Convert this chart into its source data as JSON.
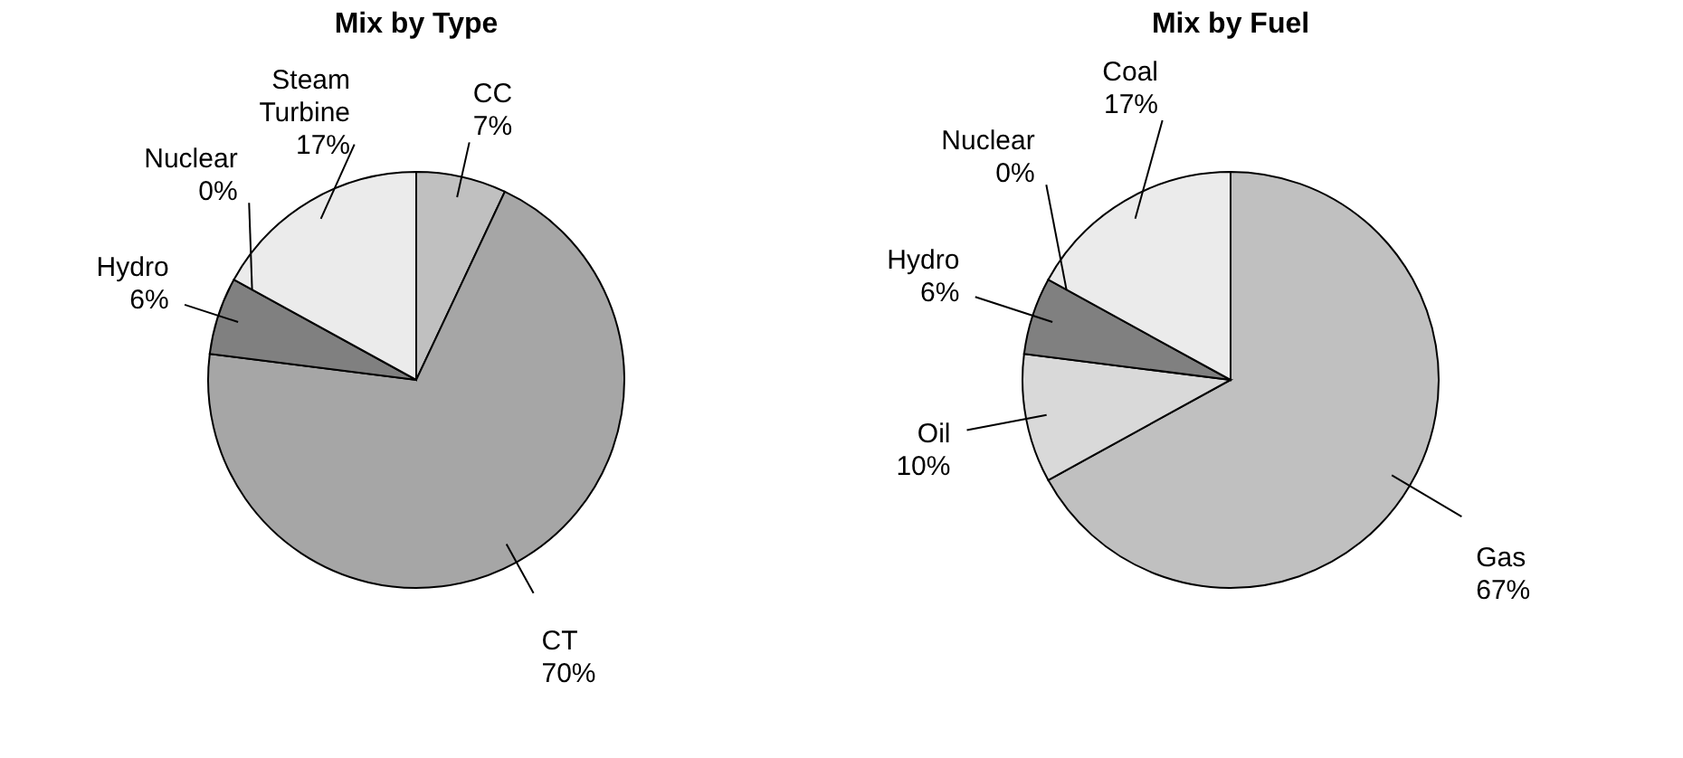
{
  "chart_data": [
    {
      "type": "pie",
      "title": "Mix by Type",
      "categories": [
        "CC",
        "CT",
        "Hydro",
        "Nuclear",
        "Steam Turbine"
      ],
      "values": [
        7,
        70,
        6,
        0,
        17
      ],
      "value_labels": [
        "7%",
        "70%",
        "6%",
        "0%",
        "17%"
      ],
      "colors": [
        "#c0c0c0",
        "#a6a6a6",
        "#808080",
        "#404040",
        "#ebebeb"
      ],
      "legend": false
    },
    {
      "type": "pie",
      "title": "Mix by Fuel",
      "categories": [
        "Gas",
        "Oil",
        "Hydro",
        "Nuclear",
        "Coal"
      ],
      "values": [
        67,
        10,
        6,
        0,
        17
      ],
      "value_labels": [
        "67%",
        "10%",
        "6%",
        "0%",
        "17%"
      ],
      "colors": [
        "#c0c0c0",
        "#d9d9d9",
        "#808080",
        "#404040",
        "#ebebeb"
      ],
      "legend": false
    }
  ]
}
